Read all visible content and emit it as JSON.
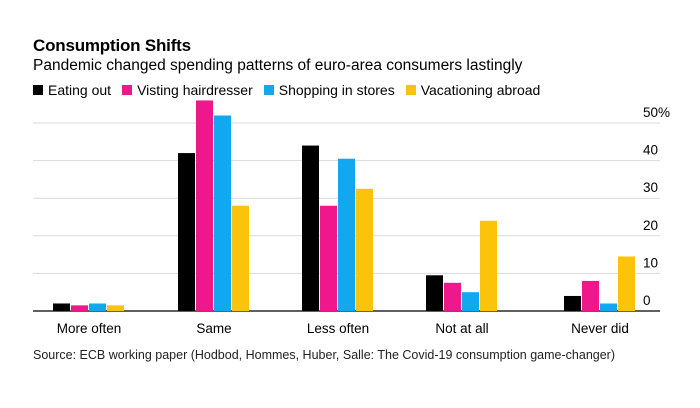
{
  "chart_data": {
    "type": "bar",
    "title": "Consumption Shifts",
    "subtitle": "Pandemic changed spending patterns of euro-area consumers lastingly",
    "categories": [
      "More often",
      "Same",
      "Less often",
      "Not at all",
      "Never did"
    ],
    "series": [
      {
        "name": "Eating out",
        "color": "#000000",
        "values": [
          2,
          42,
          44,
          9.5,
          4
        ]
      },
      {
        "name": "Visting hairdresser",
        "color": "#f0168c",
        "values": [
          1.5,
          56,
          28,
          7.5,
          8
        ]
      },
      {
        "name": "Shopping in stores",
        "color": "#12a8f0",
        "values": [
          2,
          52,
          40.5,
          5,
          2
        ]
      },
      {
        "name": "Vacationing abroad",
        "color": "#fbc40a",
        "values": [
          1.5,
          28,
          32.5,
          24,
          14.5
        ]
      }
    ],
    "yticks": [
      "50%",
      "40",
      "30",
      "20",
      "10",
      "0"
    ],
    "ytick_values": [
      50,
      40,
      30,
      20,
      10,
      0
    ],
    "ylim": [
      0,
      55
    ],
    "grid": true,
    "source": "Source: ECB working paper (Hodbod, Hommes, Huber, Salle: The Covid-19 consumption game-changer)"
  }
}
